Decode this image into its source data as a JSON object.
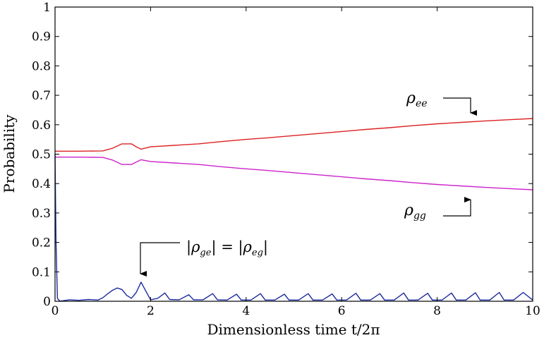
{
  "chart_data": {
    "type": "line",
    "title": "",
    "xlabel": "Dimensionless time t/2π",
    "ylabel": "Probability",
    "xlim": [
      0,
      10
    ],
    "ylim": [
      0,
      1
    ],
    "x_ticks": [
      "0",
      "2",
      "4",
      "6",
      "8",
      "10"
    ],
    "y_ticks": [
      "0",
      "0.1",
      "0.2",
      "0.3",
      "0.4",
      "0.5",
      "0.6",
      "0.7",
      "0.8",
      "0.9",
      "1"
    ],
    "grid": false,
    "series": [
      {
        "name": "ρee",
        "color": "#dd2222",
        "points": [
          [
            0,
            0.51
          ],
          [
            0.5,
            0.51
          ],
          [
            1.0,
            0.511
          ],
          [
            1.2,
            0.52
          ],
          [
            1.4,
            0.535
          ],
          [
            1.6,
            0.535
          ],
          [
            1.7,
            0.525
          ],
          [
            1.8,
            0.517
          ],
          [
            2.0,
            0.525
          ],
          [
            2.5,
            0.53
          ],
          [
            3.0,
            0.535
          ],
          [
            3.5,
            0.543
          ],
          [
            4.0,
            0.55
          ],
          [
            4.5,
            0.556
          ],
          [
            5.0,
            0.563
          ],
          [
            5.5,
            0.57
          ],
          [
            6.0,
            0.577
          ],
          [
            6.5,
            0.584
          ],
          [
            7.0,
            0.59
          ],
          [
            7.5,
            0.597
          ],
          [
            8.0,
            0.603
          ],
          [
            8.5,
            0.608
          ],
          [
            9.0,
            0.613
          ],
          [
            9.5,
            0.617
          ],
          [
            10.0,
            0.621
          ]
        ]
      },
      {
        "name": "ρgg",
        "color": "#cc22cc",
        "points": [
          [
            0,
            0.49
          ],
          [
            0.5,
            0.49
          ],
          [
            1.0,
            0.489
          ],
          [
            1.2,
            0.48
          ],
          [
            1.4,
            0.465
          ],
          [
            1.6,
            0.465
          ],
          [
            1.7,
            0.473
          ],
          [
            1.8,
            0.481
          ],
          [
            2.0,
            0.475
          ],
          [
            2.5,
            0.47
          ],
          [
            3.0,
            0.465
          ],
          [
            3.5,
            0.457
          ],
          [
            4.0,
            0.45
          ],
          [
            4.5,
            0.444
          ],
          [
            5.0,
            0.437
          ],
          [
            5.5,
            0.43
          ],
          [
            6.0,
            0.423
          ],
          [
            6.5,
            0.416
          ],
          [
            7.0,
            0.41
          ],
          [
            7.5,
            0.403
          ],
          [
            8.0,
            0.397
          ],
          [
            8.5,
            0.392
          ],
          [
            9.0,
            0.387
          ],
          [
            9.5,
            0.383
          ],
          [
            10.0,
            0.379
          ]
        ]
      },
      {
        "name": "|ρge| = |ρeg|",
        "color": "#1a2aa0",
        "points": [
          [
            0,
            0.5
          ],
          [
            0.02,
            0.2
          ],
          [
            0.05,
            0.01
          ],
          [
            0.1,
            0.0
          ],
          [
            0.3,
            0.005
          ],
          [
            0.5,
            0.003
          ],
          [
            0.7,
            0.006
          ],
          [
            0.9,
            0.004
          ],
          [
            1.0,
            0.012
          ],
          [
            1.1,
            0.025
          ],
          [
            1.2,
            0.037
          ],
          [
            1.3,
            0.045
          ],
          [
            1.4,
            0.04
          ],
          [
            1.5,
            0.02
          ],
          [
            1.6,
            0.01
          ],
          [
            1.7,
            0.03
          ],
          [
            1.8,
            0.065
          ],
          [
            1.9,
            0.035
          ],
          [
            2.0,
            0.005
          ],
          [
            2.15,
            0.01
          ],
          [
            2.3,
            0.028
          ],
          [
            2.4,
            0.006
          ],
          [
            2.6,
            0.005
          ],
          [
            2.8,
            0.022
          ],
          [
            2.9,
            0.005
          ],
          [
            3.1,
            0.005
          ],
          [
            3.3,
            0.026
          ],
          [
            3.4,
            0.005
          ],
          [
            3.6,
            0.004
          ],
          [
            3.8,
            0.024
          ],
          [
            3.9,
            0.004
          ],
          [
            4.1,
            0.004
          ],
          [
            4.3,
            0.026
          ],
          [
            4.4,
            0.004
          ],
          [
            4.6,
            0.004
          ],
          [
            4.8,
            0.024
          ],
          [
            4.9,
            0.004
          ],
          [
            5.1,
            0.004
          ],
          [
            5.3,
            0.026
          ],
          [
            5.4,
            0.004
          ],
          [
            5.6,
            0.004
          ],
          [
            5.8,
            0.025
          ],
          [
            5.9,
            0.004
          ],
          [
            6.1,
            0.004
          ],
          [
            6.3,
            0.027
          ],
          [
            6.4,
            0.004
          ],
          [
            6.6,
            0.004
          ],
          [
            6.8,
            0.026
          ],
          [
            6.9,
            0.004
          ],
          [
            7.1,
            0.004
          ],
          [
            7.3,
            0.028
          ],
          [
            7.4,
            0.004
          ],
          [
            7.6,
            0.004
          ],
          [
            7.8,
            0.027
          ],
          [
            7.9,
            0.004
          ],
          [
            8.1,
            0.004
          ],
          [
            8.3,
            0.028
          ],
          [
            8.4,
            0.004
          ],
          [
            8.6,
            0.004
          ],
          [
            8.8,
            0.029
          ],
          [
            8.9,
            0.004
          ],
          [
            9.1,
            0.004
          ],
          [
            9.3,
            0.03
          ],
          [
            9.4,
            0.004
          ],
          [
            9.6,
            0.004
          ],
          [
            9.8,
            0.03
          ],
          [
            10.0,
            0.004
          ]
        ]
      }
    ],
    "annotations": [
      {
        "id": "ee",
        "base": "ρ",
        "sub": "ee",
        "target": [
          8.6,
          0.6
        ],
        "direction": "down"
      },
      {
        "id": "gg",
        "base": "ρ",
        "sub": "gg",
        "target": [
          8.6,
          0.39
        ],
        "direction": "up"
      },
      {
        "id": "ge",
        "text_left": "|ρ",
        "sub_left": "ge",
        "middle": "| = |ρ",
        "sub_right": "eg",
        "text_right": "|",
        "target": [
          1.8,
          0.1
        ],
        "direction": "down"
      }
    ]
  }
}
